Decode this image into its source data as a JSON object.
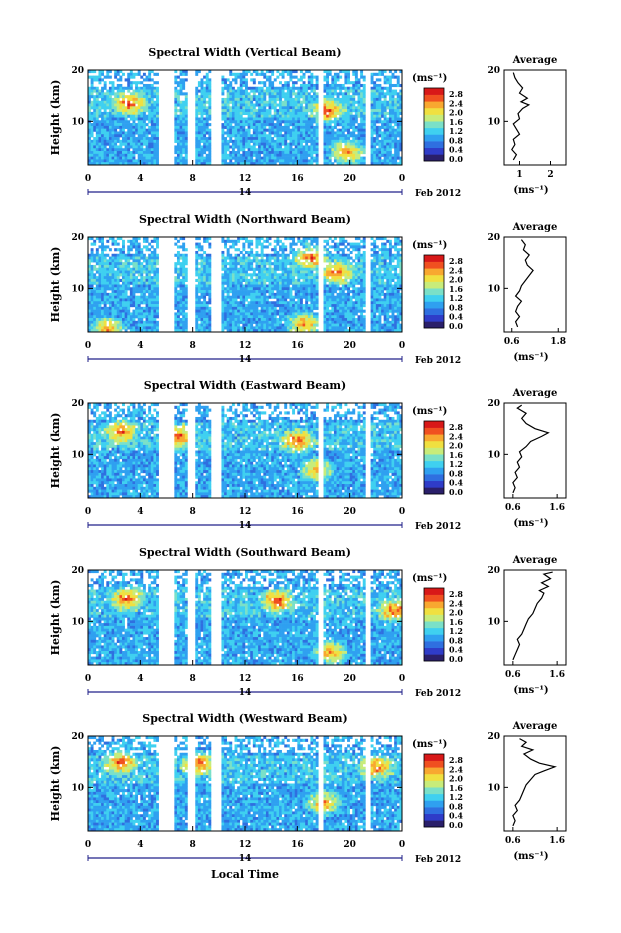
{
  "figure": {
    "x_axis_label": "Local Time",
    "color_scale": [
      "#2a1f6a",
      "#2f3cc8",
      "#2f6fe0",
      "#2fa0f0",
      "#3fd0f0",
      "#7ae0c8",
      "#c8ec7a",
      "#f0e040",
      "#f8a830",
      "#f05020",
      "#d81818"
    ],
    "missing_color": "#ffffff"
  },
  "chart_data": [
    {
      "type": "heatmap",
      "title": "Spectral Width (Vertical Beam)",
      "ylabel": "Height (km)",
      "xlabel": "Local Time",
      "x_ticks": [
        "0",
        "4",
        "8",
        "12",
        "16",
        "20",
        "0"
      ],
      "y_ticks": [
        "20",
        "10"
      ],
      "date_label": "14",
      "month_label": "Feb 2012",
      "colorbar": {
        "unit": "(ms⁻¹)",
        "ticks": [
          "2.8",
          "2.4",
          "2.0",
          "1.6",
          "1.2",
          "0.8",
          "0.4",
          "0.0"
        ]
      },
      "gap_hours": [
        [
          5.5,
          6.6
        ],
        [
          7.7,
          8.2
        ],
        [
          9.5,
          10.2
        ],
        [
          17.7,
          18.0
        ],
        [
          21.2,
          21.5
        ]
      ],
      "hotspots": [
        [
          3.2,
          13.5
        ],
        [
          18.3,
          12
        ],
        [
          19.8,
          4
        ]
      ],
      "average": {
        "title": "Average",
        "xlabel": "(ms⁻¹)",
        "x_ticks": [
          "1",
          "2"
        ],
        "xlim": [
          0.5,
          2.5
        ],
        "y_ticks": [
          "20",
          "10"
        ],
        "profile": [
          [
            0.8,
            2.5
          ],
          [
            0.9,
            3.5
          ],
          [
            0.75,
            4.5
          ],
          [
            0.85,
            5.5
          ],
          [
            0.8,
            6.5
          ],
          [
            1.0,
            7.5
          ],
          [
            0.9,
            8.5
          ],
          [
            0.8,
            9.5
          ],
          [
            1.0,
            10.5
          ],
          [
            0.95,
            11.5
          ],
          [
            1.1,
            12.5
          ],
          [
            1.3,
            13.2
          ],
          [
            1.05,
            13.8
          ],
          [
            1.25,
            14.5
          ],
          [
            1.0,
            15.5
          ],
          [
            1.1,
            16.5
          ],
          [
            0.95,
            17.5
          ],
          [
            0.85,
            18.5
          ],
          [
            0.8,
            19.5
          ]
        ]
      }
    },
    {
      "type": "heatmap",
      "title": "Spectral Width (Northward Beam)",
      "ylabel": "Height (km)",
      "xlabel": "Local Time",
      "x_ticks": [
        "0",
        "4",
        "8",
        "12",
        "16",
        "20",
        "0"
      ],
      "y_ticks": [
        "20",
        "10"
      ],
      "date_label": "14",
      "month_label": "Feb 2012",
      "colorbar": {
        "unit": "(ms⁻¹)",
        "ticks": [
          "2.8",
          "2.4",
          "2.0",
          "1.6",
          "1.2",
          "0.8",
          "0.4",
          "0.0"
        ]
      },
      "gap_hours": [
        [
          5.5,
          6.6
        ],
        [
          7.7,
          8.2
        ],
        [
          9.5,
          10.2
        ],
        [
          17.7,
          18.0
        ],
        [
          21.2,
          21.5
        ]
      ],
      "hotspots": [
        [
          17.0,
          16
        ],
        [
          19.0,
          13
        ],
        [
          1.5,
          2
        ],
        [
          16.5,
          3
        ]
      ],
      "average": {
        "title": "Average",
        "xlabel": "(ms⁻¹)",
        "x_ticks": [
          "0.6",
          "1.8"
        ],
        "xlim": [
          0.4,
          2.0
        ],
        "y_ticks": [
          "20",
          "10"
        ],
        "profile": [
          [
            0.75,
            2.5
          ],
          [
            0.7,
            3.5
          ],
          [
            0.8,
            4.5
          ],
          [
            0.7,
            5.5
          ],
          [
            0.75,
            6.5
          ],
          [
            0.85,
            7.5
          ],
          [
            0.7,
            8.5
          ],
          [
            0.8,
            9.5
          ],
          [
            0.85,
            10.5
          ],
          [
            0.95,
            11.5
          ],
          [
            1.05,
            12.5
          ],
          [
            1.15,
            13.5
          ],
          [
            1.0,
            14.5
          ],
          [
            0.95,
            15.5
          ],
          [
            1.05,
            16.5
          ],
          [
            0.9,
            17.5
          ],
          [
            0.95,
            18.5
          ],
          [
            0.85,
            19.5
          ]
        ]
      }
    },
    {
      "type": "heatmap",
      "title": "Spectral Width (Eastward Beam)",
      "ylabel": "Height (km)",
      "xlabel": "Local Time",
      "x_ticks": [
        "0",
        "4",
        "8",
        "12",
        "16",
        "20",
        "0"
      ],
      "y_ticks": [
        "20",
        "10"
      ],
      "date_label": "14",
      "month_label": "Feb 2012",
      "colorbar": {
        "unit": "(ms⁻¹)",
        "ticks": [
          "2.8",
          "2.4",
          "2.0",
          "1.6",
          "1.2",
          "0.8",
          "0.4",
          "0.0"
        ]
      },
      "gap_hours": [
        [
          5.5,
          6.6
        ],
        [
          7.7,
          8.2
        ],
        [
          9.5,
          10.2
        ],
        [
          17.7,
          18.0
        ],
        [
          21.2,
          21.5
        ]
      ],
      "hotspots": [
        [
          2.5,
          14.5
        ],
        [
          7.0,
          13.5
        ],
        [
          17.5,
          7
        ],
        [
          16.0,
          12.5
        ]
      ],
      "average": {
        "title": "Average",
        "xlabel": "(ms⁻¹)",
        "x_ticks": [
          "0.6",
          "1.6"
        ],
        "xlim": [
          0.4,
          1.8
        ],
        "y_ticks": [
          "20",
          "10"
        ],
        "profile": [
          [
            0.6,
            2.5
          ],
          [
            0.65,
            3.5
          ],
          [
            0.6,
            4.5
          ],
          [
            0.7,
            5.5
          ],
          [
            0.65,
            6.5
          ],
          [
            0.75,
            7.5
          ],
          [
            0.7,
            8.5
          ],
          [
            0.8,
            9.5
          ],
          [
            0.75,
            10.5
          ],
          [
            0.9,
            11.5
          ],
          [
            1.0,
            12.5
          ],
          [
            1.25,
            13.5
          ],
          [
            1.4,
            14.2
          ],
          [
            1.1,
            15.0
          ],
          [
            0.9,
            16.0
          ],
          [
            0.8,
            17.0
          ],
          [
            0.9,
            18.0
          ],
          [
            0.7,
            19.0
          ],
          [
            0.8,
            19.6
          ]
        ]
      }
    },
    {
      "type": "heatmap",
      "title": "Spectral Width (Southward Beam)",
      "ylabel": "Height (km)",
      "xlabel": "Local Time",
      "x_ticks": [
        "0",
        "4",
        "8",
        "12",
        "16",
        "20",
        "0"
      ],
      "y_ticks": [
        "20",
        "10"
      ],
      "date_label": "14",
      "month_label": "Feb 2012",
      "colorbar": {
        "unit": "(ms⁻¹)",
        "ticks": [
          "2.8",
          "2.4",
          "2.0",
          "1.6",
          "1.2",
          "0.8",
          "0.4",
          "0.0"
        ]
      },
      "gap_hours": [
        [
          5.5,
          6.6
        ],
        [
          7.7,
          8.2
        ],
        [
          9.5,
          10.2
        ],
        [
          17.7,
          18.0
        ],
        [
          21.2,
          21.5
        ]
      ],
      "hotspots": [
        [
          3.0,
          14.5
        ],
        [
          14.5,
          14
        ],
        [
          18.5,
          4
        ],
        [
          23.5,
          12
        ]
      ],
      "average": {
        "title": "Average",
        "xlabel": "(ms⁻¹)",
        "x_ticks": [
          "0.6",
          "1.6"
        ],
        "xlim": [
          0.4,
          1.8
        ],
        "y_ticks": [
          "20",
          "10"
        ],
        "profile": [
          [
            0.6,
            2.5
          ],
          [
            0.65,
            3.5
          ],
          [
            0.7,
            4.5
          ],
          [
            0.75,
            5.5
          ],
          [
            0.7,
            6.5
          ],
          [
            0.8,
            7.5
          ],
          [
            0.85,
            8.5
          ],
          [
            0.9,
            9.5
          ],
          [
            0.95,
            10.5
          ],
          [
            1.05,
            11.5
          ],
          [
            1.1,
            12.5
          ],
          [
            1.15,
            13.5
          ],
          [
            1.25,
            14.5
          ],
          [
            1.3,
            15.5
          ],
          [
            1.2,
            16.0
          ],
          [
            1.4,
            16.8
          ],
          [
            1.25,
            17.5
          ],
          [
            1.45,
            18.3
          ],
          [
            1.3,
            19.2
          ],
          [
            1.5,
            19.6
          ]
        ]
      }
    },
    {
      "type": "heatmap",
      "title": "Spectral Width (Westward Beam)",
      "ylabel": "Height (km)",
      "xlabel": "Local Time",
      "x_ticks": [
        "0",
        "4",
        "8",
        "12",
        "16",
        "20",
        "0"
      ],
      "y_ticks": [
        "20",
        "10"
      ],
      "date_label": "14",
      "month_label": "Feb 2012",
      "colorbar": {
        "unit": "(ms⁻¹)",
        "ticks": [
          "2.8",
          "2.4",
          "2.0",
          "1.6",
          "1.2",
          "0.8",
          "0.4",
          "0.0"
        ]
      },
      "gap_hours": [
        [
          5.5,
          6.6
        ],
        [
          7.7,
          8.2
        ],
        [
          9.5,
          10.2
        ],
        [
          17.7,
          18.0
        ],
        [
          21.2,
          21.5
        ]
      ],
      "hotspots": [
        [
          2.5,
          14.8
        ],
        [
          8.5,
          14.5
        ],
        [
          18.0,
          7
        ],
        [
          22.0,
          14
        ]
      ],
      "average": {
        "title": "Average",
        "xlabel": "(ms⁻¹)",
        "x_ticks": [
          "0.6",
          "1.6"
        ],
        "xlim": [
          0.4,
          1.8
        ],
        "y_ticks": [
          "20",
          "10"
        ],
        "profile": [
          [
            0.6,
            2.5
          ],
          [
            0.65,
            3.5
          ],
          [
            0.6,
            4.5
          ],
          [
            0.7,
            5.5
          ],
          [
            0.65,
            6.5
          ],
          [
            0.75,
            7.5
          ],
          [
            0.8,
            8.5
          ],
          [
            0.85,
            9.5
          ],
          [
            0.9,
            10.5
          ],
          [
            1.0,
            11.5
          ],
          [
            1.1,
            12.5
          ],
          [
            1.3,
            13.2
          ],
          [
            1.55,
            14.0
          ],
          [
            1.2,
            14.7
          ],
          [
            1.0,
            15.5
          ],
          [
            0.85,
            16.5
          ],
          [
            1.05,
            17.3
          ],
          [
            0.8,
            18.0
          ],
          [
            0.9,
            18.8
          ],
          [
            0.75,
            19.5
          ]
        ]
      }
    }
  ]
}
